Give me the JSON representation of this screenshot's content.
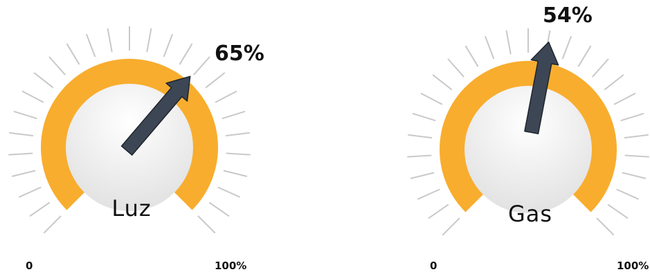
{
  "colors": {
    "arc": "#f8ad2e",
    "ticks": "#c9c9c9",
    "needle": "#3c4654",
    "needle_edge": "#1f252d",
    "face_top": "#ffffff",
    "face_bottom": "#e2e2e2"
  },
  "gauges": [
    {
      "label": "Luz",
      "value": 65,
      "value_text": "65%",
      "scale_min": "0",
      "scale_max": "100%"
    },
    {
      "label": "Gas",
      "value": 54,
      "value_text": "54%",
      "scale_min": "0",
      "scale_max": "100%"
    }
  ]
}
